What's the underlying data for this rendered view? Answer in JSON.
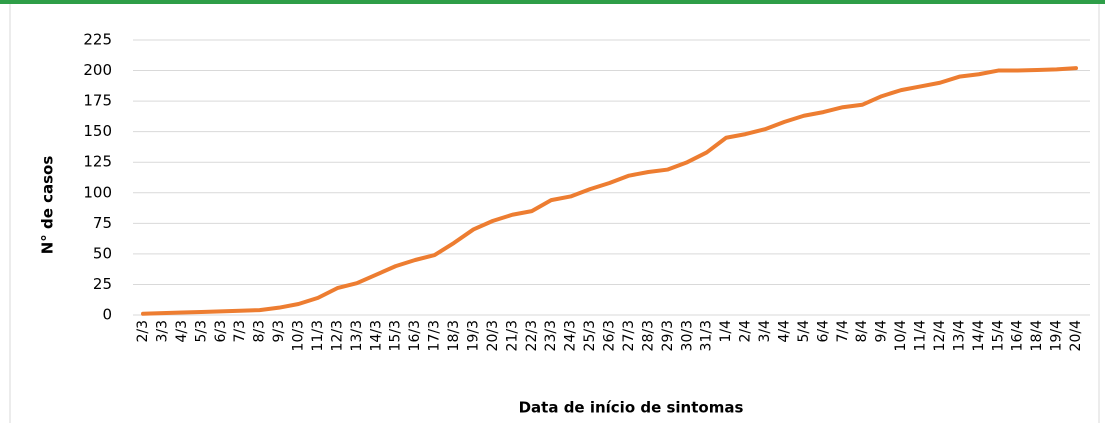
{
  "chart_data": {
    "type": "line",
    "x_label": "Data de início de sintomas",
    "y_label": "N° de casos",
    "categories": [
      "2/3",
      "3/3",
      "4/3",
      "5/3",
      "6/3",
      "7/3",
      "8/3",
      "9/3",
      "10/3",
      "11/3",
      "12/3",
      "13/3",
      "14/3",
      "15/3",
      "16/3",
      "17/3",
      "18/3",
      "19/3",
      "20/3",
      "21/3",
      "22/3",
      "23/3",
      "24/3",
      "25/3",
      "26/3",
      "27/3",
      "28/3",
      "29/3",
      "30/3",
      "31/3",
      "1/4",
      "2/4",
      "3/4",
      "4/4",
      "5/4",
      "6/4",
      "7/4",
      "8/4",
      "9/4",
      "10/4",
      "11/4",
      "12/4",
      "13/4",
      "14/4",
      "15/4",
      "16/4",
      "18/4",
      "19/4",
      "20/4"
    ],
    "series": [
      {
        "color": "#ed7d31",
        "values": [
          1,
          1.5,
          2,
          2.5,
          3,
          3.5,
          4,
          6,
          9,
          14,
          22,
          26,
          33,
          40,
          45,
          49,
          59,
          70,
          77,
          82,
          85,
          94,
          97,
          103,
          108,
          114,
          117,
          119,
          125,
          133,
          145,
          148,
          152,
          158,
          163,
          166,
          170,
          172,
          179,
          184,
          187,
          190,
          195,
          197,
          200,
          200,
          200.5,
          201,
          202
        ]
      }
    ],
    "ylim": [
      0,
      225
    ],
    "yticks": [
      0,
      25,
      50,
      75,
      100,
      125,
      150,
      175,
      200,
      225
    ],
    "grid": true
  }
}
